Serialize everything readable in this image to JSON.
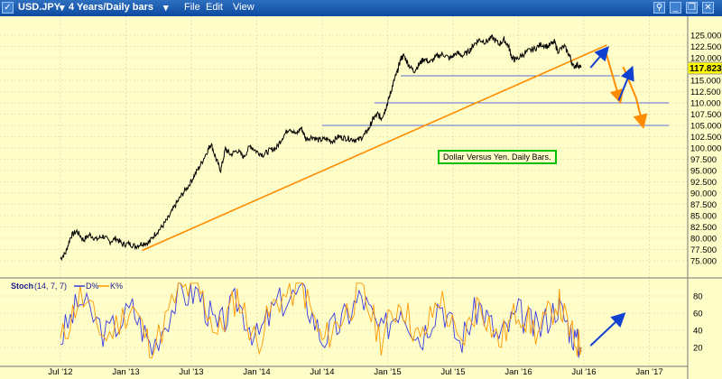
{
  "window": {
    "checkbox_label": "",
    "symbol": "USD.JPY",
    "interval": "4 Years/Daily bars",
    "menus": [
      "File",
      "Edit",
      "View"
    ],
    "controls": [
      "pin",
      "minimize",
      "restore",
      "close"
    ]
  },
  "annotation": "Dollar Versus Yen. Daily Bars.",
  "price_label": "117.823",
  "stoch_label": "Stoch",
  "stoch_params": "(14, 7, 7)",
  "stoch_d": "D%",
  "stoch_k": "K%",
  "colors": {
    "background": "#fffdc8",
    "price": "#000000",
    "trendline": "#ff8c00",
    "support": "#5b6fd6",
    "blue_arrow": "#1040d0",
    "price_badge": "#ffff00",
    "stoch_d": "#3a3ae0",
    "stoch_k": "#ff9900"
  },
  "chart_data": [
    {
      "type": "line",
      "title": "USD.JPY",
      "subtitle": "4 Years/Daily bars",
      "x_labels": [
        "Jul '12",
        "Jan '13",
        "Jul '13",
        "Jan '14",
        "Jul '14",
        "Jan '15",
        "Jul '15",
        "Jan '16",
        "Jul '16",
        "Jan '17"
      ],
      "y_ticks": [
        "75.000",
        "77.500",
        "80.000",
        "82.500",
        "85.000",
        "87.500",
        "90.000",
        "92.500",
        "95.000",
        "97.500",
        "100.000",
        "102.500",
        "105.000",
        "107.500",
        "110.000",
        "112.500",
        "115.000",
        "117.500",
        "120.000",
        "122.500",
        "125.000"
      ],
      "ylim": [
        73.5,
        127.5
      ],
      "last_price": 117.823,
      "series": [
        {
          "values": [
            [
              0,
              75.5
            ],
            [
              0.08,
              76.8
            ],
            [
              0.16,
              80.5
            ],
            [
              0.25,
              81.6
            ],
            [
              0.35,
              79.6
            ],
            [
              0.45,
              80.8
            ],
            [
              0.55,
              79.7
            ],
            [
              0.65,
              80.5
            ],
            [
              0.75,
              79.2
            ],
            [
              0.85,
              80.0
            ],
            [
              0.95,
              78.6
            ],
            [
              1.05,
              78.8
            ],
            [
              1.15,
              78.2
            ],
            [
              1.25,
              78.9
            ],
            [
              1.35,
              79.0
            ],
            [
              1.45,
              81.0
            ],
            [
              1.55,
              82.5
            ],
            [
              1.65,
              84.5
            ],
            [
              1.75,
              87.2
            ],
            [
              1.85,
              89.5
            ],
            [
              1.95,
              91.5
            ],
            [
              2.05,
              94.0
            ],
            [
              2.15,
              96.5
            ],
            [
              2.25,
              99.5
            ],
            [
              2.3,
              101.0
            ],
            [
              2.38,
              97.5
            ],
            [
              2.45,
              95.0
            ],
            [
              2.52,
              99.8
            ],
            [
              2.6,
              98.5
            ],
            [
              2.7,
              99.5
            ],
            [
              2.8,
              98.0
            ],
            [
              2.9,
              100.5
            ],
            [
              3.0,
              99.2
            ],
            [
              3.1,
              98.5
            ],
            [
              3.2,
              99.5
            ],
            [
              3.3,
              100.0
            ],
            [
              3.4,
              102.5
            ],
            [
              3.5,
              104.5
            ],
            [
              3.6,
              103.0
            ],
            [
              3.68,
              104.5
            ],
            [
              3.75,
              102.0
            ],
            [
              3.85,
              102.5
            ],
            [
              3.95,
              101.7
            ],
            [
              4.05,
              102.0
            ],
            [
              4.15,
              101.5
            ],
            [
              4.25,
              102.5
            ],
            [
              4.35,
              102.2
            ],
            [
              4.45,
              102.0
            ],
            [
              4.55,
              101.7
            ],
            [
              4.65,
              103.0
            ],
            [
              4.72,
              104.5
            ],
            [
              4.78,
              106.5
            ],
            [
              4.85,
              107.5
            ],
            [
              4.9,
              106.5
            ],
            [
              4.95,
              108.0
            ],
            [
              5.0,
              110.0
            ],
            [
              5.05,
              112.5
            ],
            [
              5.1,
              115.0
            ],
            [
              5.15,
              117.0
            ],
            [
              5.2,
              119.8
            ],
            [
              5.25,
              120.5
            ],
            [
              5.32,
              118.5
            ],
            [
              5.4,
              117.0
            ],
            [
              5.48,
              118.5
            ],
            [
              5.55,
              119.8
            ],
            [
              5.65,
              119.0
            ],
            [
              5.75,
              120.3
            ],
            [
              5.85,
              120.8
            ],
            [
              5.95,
              119.8
            ],
            [
              6.05,
              121.0
            ],
            [
              6.15,
              120.5
            ],
            [
              6.25,
              121.5
            ],
            [
              6.32,
              123.0
            ],
            [
              6.4,
              124.0
            ],
            [
              6.5,
              123.5
            ],
            [
              6.6,
              124.5
            ],
            [
              6.7,
              123.0
            ],
            [
              6.78,
              124.0
            ],
            [
              6.85,
              122.5
            ],
            [
              6.9,
              120.0
            ],
            [
              6.95,
              119.5
            ],
            [
              7.05,
              120.5
            ],
            [
              7.15,
              121.5
            ],
            [
              7.25,
              122.0
            ],
            [
              7.35,
              123.0
            ],
            [
              7.45,
              122.5
            ],
            [
              7.55,
              123.5
            ],
            [
              7.6,
              121.5
            ],
            [
              7.7,
              122.5
            ],
            [
              7.78,
              120.5
            ],
            [
              7.84,
              118.0
            ],
            [
              7.9,
              118.5
            ],
            [
              7.96,
              117.8
            ]
          ]
        }
      ],
      "trendline": [
        [
          1.25,
          77.3
        ],
        [
          8.35,
          122.8
        ]
      ],
      "support_lines": [
        {
          "y": 116.0,
          "x": [
            5.2,
            8.55
          ]
        },
        {
          "y": 110.0,
          "x": [
            4.8,
            9.3
          ]
        },
        {
          "y": 105.0,
          "x": [
            4.0,
            9.3
          ]
        }
      ],
      "projection_arrows": [
        {
          "color": "orange",
          "points": [
            [
              8.33,
              121.5
            ],
            [
              8.45,
              115.5
            ],
            [
              8.55,
              110.5
            ]
          ]
        },
        {
          "color": "orange",
          "points": [
            [
              8.6,
              118.0
            ],
            [
              8.8,
              111.0
            ],
            [
              8.9,
              105.0
            ]
          ]
        },
        {
          "color": "blue",
          "points": [
            [
              8.1,
              117.8
            ],
            [
              8.35,
              122.0
            ]
          ]
        },
        {
          "color": "blue",
          "points": [
            [
              8.53,
              110.5
            ],
            [
              8.73,
              117.5
            ]
          ]
        }
      ]
    },
    {
      "type": "line",
      "title": "Stoch (14, 7, 7)",
      "y_ticks": [
        "20",
        "40",
        "60",
        "80"
      ],
      "ylim": [
        5,
        100
      ],
      "series": [
        {
          "name": "D%",
          "values": [
            [
              0,
              30
            ],
            [
              0.3,
              75
            ],
            [
              0.7,
              35
            ],
            [
              1.1,
              65
            ],
            [
              1.4,
              20
            ],
            [
              1.8,
              80
            ],
            [
              2.1,
              85
            ],
            [
              2.4,
              40
            ],
            [
              2.7,
              75
            ],
            [
              3.0,
              30
            ],
            [
              3.3,
              70
            ],
            [
              3.7,
              85
            ],
            [
              4.0,
              30
            ],
            [
              4.3,
              50
            ],
            [
              4.6,
              80
            ],
            [
              4.9,
              35
            ],
            [
              5.2,
              70
            ],
            [
              5.5,
              30
            ],
            [
              5.8,
              75
            ],
            [
              6.1,
              25
            ],
            [
              6.4,
              70
            ],
            [
              6.7,
              30
            ],
            [
              7.0,
              60
            ],
            [
              7.3,
              40
            ],
            [
              7.6,
              70
            ],
            [
              7.8,
              40
            ],
            [
              7.96,
              15
            ]
          ]
        },
        {
          "name": "K%",
          "values": [
            [
              0,
              25
            ],
            [
              0.3,
              80
            ],
            [
              0.7,
              30
            ],
            [
              1.1,
              70
            ],
            [
              1.4,
              15
            ],
            [
              1.8,
              85
            ],
            [
              2.1,
              90
            ],
            [
              2.4,
              35
            ],
            [
              2.7,
              80
            ],
            [
              3.0,
              25
            ],
            [
              3.3,
              75
            ],
            [
              3.7,
              90
            ],
            [
              4.0,
              25
            ],
            [
              4.3,
              55
            ],
            [
              4.6,
              85
            ],
            [
              4.9,
              30
            ],
            [
              5.2,
              75
            ],
            [
              5.5,
              25
            ],
            [
              5.8,
              80
            ],
            [
              6.1,
              20
            ],
            [
              6.4,
              75
            ],
            [
              6.7,
              25
            ],
            [
              7.0,
              65
            ],
            [
              7.3,
              35
            ],
            [
              7.6,
              75
            ],
            [
              7.8,
              35
            ],
            [
              7.96,
              20
            ]
          ]
        }
      ],
      "projection_arrow": [
        [
          8.1,
          22
        ],
        [
          8.6,
          58
        ]
      ]
    }
  ]
}
